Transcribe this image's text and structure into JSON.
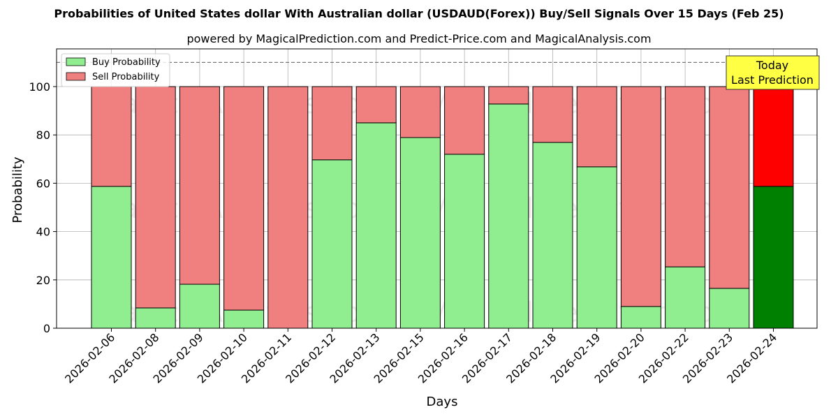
{
  "header": {
    "title": "Probabilities of United States dollar With Australian dollar (USDAUD(Forex)) Buy/Sell Signals Over 15 Days (Feb 25)",
    "subtitle": "powered by MagicalPrediction.com and Predict-Price.com and MagicalAnalysis.com"
  },
  "colors": {
    "buy": "#90ee90",
    "sell": "#f08080",
    "buy_today": "#008000",
    "sell_today": "#ff0000",
    "annotation_bg": "#ffff44"
  },
  "annotation": {
    "line1": "Today",
    "line2": "Last Prediction"
  },
  "watermarks": [
    "MagicalAnalysis.com",
    "MagicalPrediction.com"
  ],
  "chart_data": {
    "type": "bar",
    "stacked": true,
    "title": "Probabilities of United States dollar With Australian dollar (USDAUD(Forex)) Buy/Sell Signals Over 15 Days (Feb 25)",
    "subtitle": "powered by MagicalPrediction.com and Predict-Price.com and MagicalAnalysis.com",
    "xlabel": "Days",
    "ylabel": "Probability",
    "ylim": [
      0,
      115
    ],
    "yticks": [
      0,
      20,
      40,
      60,
      80,
      100
    ],
    "grid": true,
    "reference_line": 110,
    "legend": {
      "position": "upper left",
      "entries": [
        "Buy Probability",
        "Sell Probability"
      ]
    },
    "categories": [
      "2026-02-06",
      "2026-02-08",
      "2026-02-09",
      "2026-02-10",
      "2026-02-11",
      "2026-02-12",
      "2026-02-13",
      "2026-02-15",
      "2026-02-16",
      "2026-02-17",
      "2026-02-18",
      "2026-02-19",
      "2026-02-20",
      "2026-02-22",
      "2026-02-23",
      "2026-02-24"
    ],
    "series": [
      {
        "name": "Buy Probability",
        "values": [
          58.7,
          8.4,
          18.2,
          7.5,
          0.0,
          69.7,
          85.0,
          78.9,
          72.0,
          92.8,
          76.9,
          66.8,
          9.0,
          25.4,
          16.5,
          58.7
        ]
      },
      {
        "name": "Sell Probability",
        "values": [
          41.3,
          91.6,
          81.8,
          92.5,
          100.0,
          30.3,
          15.0,
          21.1,
          28.0,
          7.2,
          23.1,
          33.2,
          91.0,
          74.6,
          83.5,
          41.3
        ]
      }
    ],
    "highlight": {
      "category": "2026-02-24",
      "label": "Today Last Prediction"
    }
  }
}
